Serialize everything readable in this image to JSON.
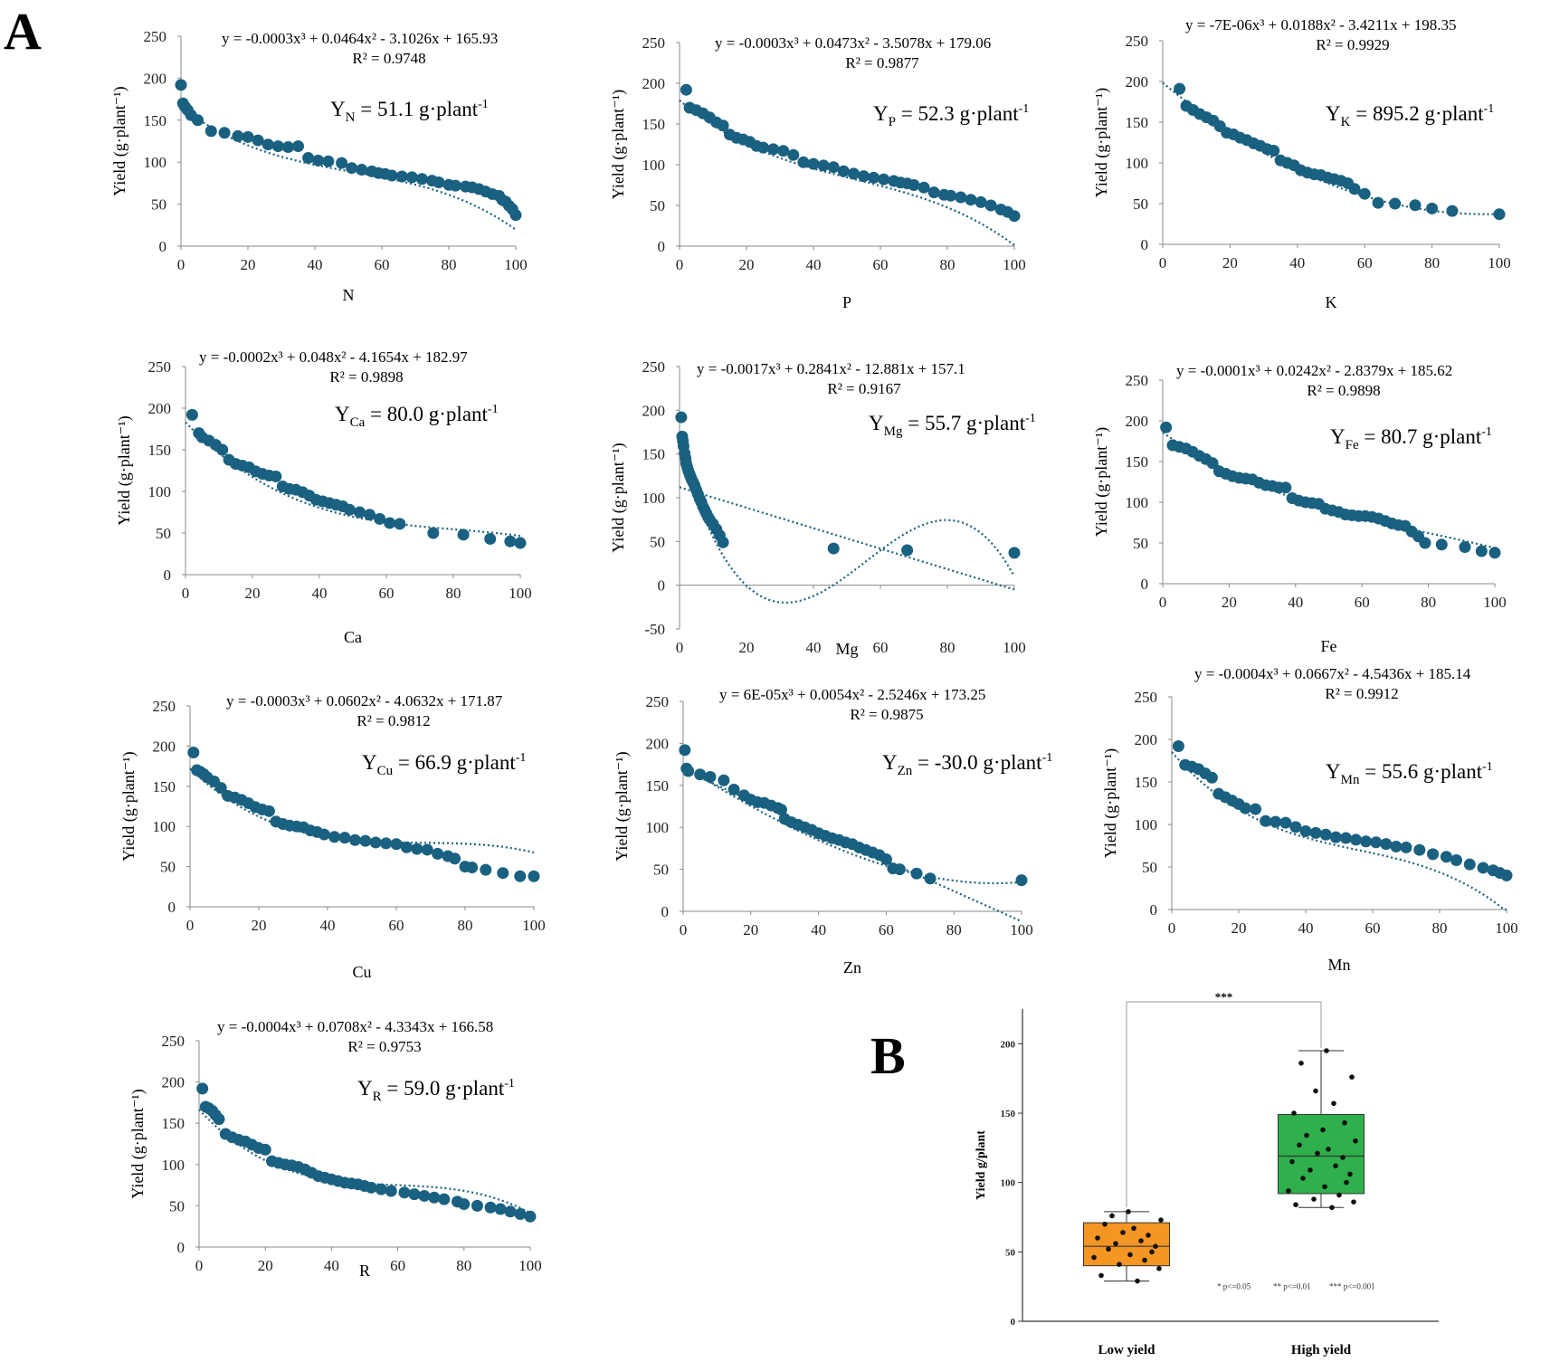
{
  "panel_labels": {
    "a": "A",
    "b": "B"
  },
  "style": {
    "point_color": "#1a6080",
    "low_box_color": "#f59524",
    "high_box_color": "#2fb04c"
  },
  "chart_data": [
    {
      "id": "N",
      "type": "scatter",
      "title": "",
      "xlabel": "N",
      "ylabel": "Yield (g·plant⁻¹)",
      "xlim": [
        0,
        100
      ],
      "ylim": [
        0,
        250
      ],
      "xticks": [
        0,
        20,
        40,
        60,
        80,
        100
      ],
      "yticks": [
        0,
        50,
        100,
        150,
        200,
        250
      ],
      "equation": "y = -0.0003x³ + 0.0464x² - 3.1026x + 165.93",
      "r2": "R² = 0.9748",
      "result": {
        "prefix": "Y",
        "sub": "N",
        "value": " = 51.1 g·plant",
        "sup": "-1"
      },
      "coef": [
        165.93,
        -3.1026,
        0.0464,
        -0.0003
      ],
      "x": [
        0,
        0.6,
        1.2,
        2,
        3,
        5,
        9,
        13,
        17,
        20,
        23,
        26,
        29,
        32,
        35,
        38,
        41,
        44,
        48,
        51,
        54,
        57,
        59,
        61,
        63,
        66,
        69,
        72,
        75,
        77,
        80,
        82,
        85,
        87,
        89,
        91,
        93,
        95,
        96,
        97,
        98,
        99,
        100
      ],
      "y": [
        192,
        170,
        166,
        162,
        156,
        150,
        137,
        135,
        131,
        130,
        126,
        121,
        119,
        118,
        119,
        105,
        102,
        101,
        99,
        93,
        91,
        89,
        87,
        86,
        84,
        83,
        82,
        80,
        78,
        76,
        73,
        72,
        71,
        70,
        68,
        65,
        62,
        60,
        55,
        53,
        48,
        44,
        37
      ]
    },
    {
      "id": "P",
      "type": "scatter",
      "title": "",
      "xlabel": "P",
      "ylabel": "Yield (g·plant⁻¹)",
      "xlim": [
        0,
        100
      ],
      "ylim": [
        0,
        250
      ],
      "xticks": [
        0,
        20,
        40,
        60,
        80,
        100
      ],
      "yticks": [
        0,
        50,
        100,
        150,
        200,
        250
      ],
      "equation": "y = -0.0003x³ + 0.0473x² - 3.5078x + 179.06",
      "r2": "R² = 0.9877",
      "result": {
        "prefix": "Y",
        "sub": "P",
        "value": " = 52.3 g·plant",
        "sup": "-1"
      },
      "coef": [
        179.06,
        -3.5078,
        0.0473,
        -0.0003
      ],
      "x": [
        2,
        3,
        5,
        7,
        9,
        11,
        13,
        15,
        17,
        19,
        21,
        23,
        25,
        28,
        31,
        34,
        37,
        40,
        43,
        46,
        49,
        52,
        55,
        58,
        61,
        64,
        66,
        68,
        70,
        73,
        76,
        79,
        81,
        84,
        87,
        90,
        93,
        96,
        98,
        100
      ],
      "y": [
        192,
        170,
        167,
        163,
        158,
        152,
        148,
        137,
        133,
        131,
        128,
        123,
        121,
        119,
        117,
        112,
        103,
        101,
        99,
        97,
        92,
        89,
        86,
        84,
        82,
        80,
        78,
        77,
        75,
        72,
        66,
        63,
        62,
        60,
        57,
        54,
        50,
        45,
        42,
        37
      ]
    },
    {
      "id": "K",
      "type": "scatter",
      "title": "",
      "xlabel": "K",
      "ylabel": "Yield (g·plant⁻¹)",
      "xlim": [
        0,
        100
      ],
      "ylim": [
        0,
        250
      ],
      "xticks": [
        0,
        20,
        40,
        60,
        80,
        100
      ],
      "yticks": [
        0,
        50,
        100,
        150,
        200,
        250
      ],
      "equation": "y = -7E-06x³ + 0.0188x² - 3.4211x + 198.35",
      "r2": "R² = 0.9929",
      "result": {
        "prefix": "Y",
        "sub": "K",
        "value": " = 895.2 g·plant",
        "sup": "-1"
      },
      "coef": [
        198.35,
        -3.4211,
        0.0188,
        -7e-06
      ],
      "x": [
        5,
        7,
        9,
        11,
        13,
        15,
        17,
        19,
        21,
        23,
        25,
        27,
        29,
        31,
        33,
        35,
        37,
        39,
        41,
        43,
        45,
        47,
        49,
        51,
        53,
        55,
        57,
        60,
        64,
        69,
        75,
        80,
        86,
        100
      ],
      "y": [
        191,
        170,
        165,
        160,
        156,
        152,
        145,
        137,
        135,
        131,
        128,
        124,
        121,
        117,
        115,
        103,
        100,
        97,
        91,
        88,
        86,
        85,
        82,
        80,
        78,
        75,
        68,
        62,
        51,
        50,
        48,
        44,
        41,
        37
      ]
    },
    {
      "id": "Ca",
      "type": "scatter",
      "title": "",
      "xlabel": "Ca",
      "ylabel": "Yield (g·plant⁻¹)",
      "xlim": [
        0,
        100
      ],
      "ylim": [
        0,
        250
      ],
      "xticks": [
        0,
        20,
        40,
        60,
        80,
        100
      ],
      "yticks": [
        0,
        50,
        100,
        150,
        200,
        250
      ],
      "equation": "y = -0.0002x³ + 0.048x² - 4.1654x + 182.97",
      "r2": "R² = 0.9898",
      "result": {
        "prefix": "Y",
        "sub": "Ca",
        "value": " = 80.0 g·plant",
        "sup": "-1"
      },
      "coef": [
        182.97,
        -4.1654,
        0.048,
        -0.0002
      ],
      "x": [
        2,
        4,
        5,
        7,
        9,
        11,
        13,
        15,
        17,
        19,
        21,
        23,
        25,
        27,
        29,
        31,
        33,
        35,
        37,
        39,
        41,
        43,
        45,
        47,
        49,
        52,
        55,
        58,
        61,
        64,
        74,
        83,
        91,
        97,
        100
      ],
      "y": [
        192,
        170,
        165,
        161,
        156,
        150,
        138,
        133,
        131,
        129,
        124,
        121,
        119,
        118,
        106,
        103,
        102,
        99,
        95,
        90,
        88,
        86,
        84,
        82,
        78,
        75,
        72,
        67,
        62,
        61,
        50,
        48,
        43,
        40,
        38
      ]
    },
    {
      "id": "Mg",
      "type": "scatter",
      "title": "",
      "xlabel": "Mg",
      "ylabel": "Yield (g·plant⁻¹)",
      "xlim": [
        0,
        100
      ],
      "ylim": [
        -50,
        250
      ],
      "xticks": [
        0,
        20,
        40,
        60,
        80,
        100
      ],
      "yticks": [
        -50,
        0,
        50,
        100,
        150,
        200,
        250
      ],
      "equation": "y = -0.0017x³ + 0.2841x² - 12.881x + 157.1",
      "r2": "R² = 0.9167",
      "result": {
        "prefix": "Y",
        "sub": "Mg",
        "value": " = 55.7 g·plant",
        "sup": "-1"
      },
      "coef": [
        157.1,
        -12.881,
        0.2841,
        -0.0017
      ],
      "linear": [
        112,
        -1.17
      ],
      "x": [
        0.5,
        0.8,
        1,
        1.2,
        1.5,
        1.8,
        2,
        2.3,
        2.6,
        3,
        3.3,
        3.6,
        4,
        4.5,
        5,
        5.5,
        6,
        6.5,
        7,
        7.5,
        8,
        8.5,
        9,
        10,
        11,
        12,
        13,
        46,
        68,
        100
      ],
      "y": [
        192,
        170,
        165,
        159,
        151,
        145,
        139,
        135,
        131,
        127,
        124,
        121,
        118,
        114,
        109,
        104,
        99,
        95,
        90,
        86,
        82,
        78,
        75,
        70,
        64,
        57,
        49,
        42,
        40,
        37
      ]
    },
    {
      "id": "Fe",
      "type": "scatter",
      "title": "",
      "xlabel": "Fe",
      "ylabel": "Yield (g·plant⁻¹)",
      "xlim": [
        0,
        100
      ],
      "ylim": [
        0,
        250
      ],
      "xticks": [
        0,
        20,
        40,
        60,
        80,
        100
      ],
      "yticks": [
        0,
        50,
        100,
        150,
        200,
        250
      ],
      "equation": "y = -0.0001x³ + 0.0242x² - 2.8379x + 185.62",
      "r2": "R² = 0.9898",
      "result": {
        "prefix": "Y",
        "sub": "Fe",
        "value": " = 80.7 g·plant",
        "sup": "-1"
      },
      "coef": [
        185.62,
        -2.8379,
        0.0242,
        -0.0001
      ],
      "x": [
        1,
        3,
        5,
        7,
        9,
        11,
        13,
        15,
        17,
        19,
        21,
        23,
        25,
        27,
        29,
        31,
        33,
        35,
        37,
        39,
        41,
        43,
        45,
        47,
        49,
        51,
        53,
        55,
        57,
        59,
        61,
        63,
        65,
        67,
        69,
        71,
        73,
        75,
        77,
        79,
        84,
        91,
        96,
        100
      ],
      "y": [
        192,
        170,
        168,
        166,
        162,
        157,
        153,
        148,
        138,
        135,
        132,
        130,
        129,
        128,
        124,
        121,
        120,
        118,
        118,
        105,
        102,
        100,
        99,
        98,
        92,
        90,
        88,
        85,
        84,
        83,
        83,
        82,
        80,
        77,
        74,
        72,
        71,
        64,
        58,
        50,
        48,
        45,
        40,
        38
      ]
    },
    {
      "id": "Cu",
      "type": "scatter",
      "title": "",
      "xlabel": "Cu",
      "ylabel": "Yield (g·plant⁻¹)",
      "xlim": [
        0,
        100
      ],
      "ylim": [
        0,
        250
      ],
      "xticks": [
        0,
        20,
        40,
        60,
        80,
        100
      ],
      "yticks": [
        0,
        50,
        100,
        150,
        200,
        250
      ],
      "equation": "y = -0.0003x³ + 0.0602x² - 4.0632x + 171.87",
      "r2": "R² = 0.9812",
      "result": {
        "prefix": "Y",
        "sub": "Cu",
        "value": " = 66.9 g·plant",
        "sup": "-1"
      },
      "coef": [
        171.87,
        -4.0632,
        0.0602,
        -0.0003
      ],
      "x": [
        1,
        2,
        3,
        4,
        5,
        7,
        9,
        11,
        13,
        15,
        17,
        19,
        21,
        23,
        25,
        27,
        29,
        31,
        33,
        35,
        37,
        39,
        42,
        45,
        48,
        51,
        54,
        57,
        60,
        63,
        66,
        69,
        72,
        75,
        77,
        80,
        82,
        86,
        91,
        96,
        100
      ],
      "y": [
        192,
        170,
        168,
        165,
        161,
        156,
        148,
        138,
        136,
        133,
        129,
        124,
        121,
        119,
        106,
        103,
        101,
        100,
        99,
        95,
        93,
        90,
        87,
        86,
        83,
        82,
        80,
        79,
        78,
        74,
        72,
        71,
        66,
        63,
        60,
        50,
        49,
        46,
        42,
        38,
        38
      ]
    },
    {
      "id": "Zn",
      "type": "scatter",
      "title": "",
      "xlabel": "Zn",
      "ylabel": "Yield (g·plant⁻¹)",
      "xlim": [
        0,
        100
      ],
      "ylim": [
        0,
        250
      ],
      "xticks": [
        0,
        20,
        40,
        60,
        80,
        100
      ],
      "yticks": [
        0,
        50,
        100,
        150,
        200,
        250
      ],
      "equation": "y = 6E-05x³ + 0.0054x² - 2.5246x + 173.25",
      "r2": "R² = 0.9875",
      "result": {
        "prefix": "Y",
        "sub": "Zn",
        "value": " = -30.0 g·plant",
        "sup": "-1"
      },
      "coef": [
        173.25,
        -2.5246,
        0.0054,
        6e-05
      ],
      "linear": [
        168,
        -1.8
      ],
      "x": [
        0.5,
        1,
        1.5,
        5,
        8,
        12,
        15,
        18,
        20,
        22,
        24,
        26,
        28,
        29,
        30,
        32,
        34,
        36,
        38,
        40,
        42,
        44,
        46,
        48,
        50,
        52,
        54,
        56,
        58,
        60,
        62,
        64,
        69,
        73,
        100
      ],
      "y": [
        192,
        170,
        167,
        163,
        160,
        156,
        145,
        138,
        133,
        130,
        129,
        126,
        123,
        121,
        110,
        106,
        103,
        100,
        97,
        93,
        90,
        87,
        85,
        82,
        80,
        76,
        73,
        70,
        67,
        62,
        51,
        50,
        45,
        39,
        37
      ]
    },
    {
      "id": "Mn",
      "type": "scatter",
      "title": "",
      "xlabel": "Mn",
      "ylabel": "Yield (g·plant⁻¹)",
      "xlim": [
        0,
        100
      ],
      "ylim": [
        0,
        250
      ],
      "xticks": [
        0,
        20,
        40,
        60,
        80,
        100
      ],
      "yticks": [
        0,
        50,
        100,
        150,
        200,
        250
      ],
      "equation": "y = -0.0004x³ + 0.0667x² - 4.5436x + 185.14",
      "r2": "R² = 0.9912",
      "result": {
        "prefix": "Y",
        "sub": "Mn",
        "value": " = 55.6 g·plant",
        "sup": "-1"
      },
      "coef": [
        185.14,
        -4.5436,
        0.0667,
        -0.0004
      ],
      "x": [
        2,
        4,
        6,
        8,
        10,
        12,
        14,
        16,
        18,
        20,
        22,
        25,
        28,
        31,
        34,
        37,
        40,
        43,
        46,
        49,
        52,
        55,
        58,
        61,
        64,
        67,
        70,
        74,
        78,
        82,
        85,
        89,
        93,
        96,
        98,
        100
      ],
      "y": [
        192,
        170,
        168,
        165,
        160,
        155,
        136,
        132,
        128,
        124,
        119,
        118,
        104,
        103,
        102,
        97,
        92,
        90,
        88,
        85,
        84,
        82,
        80,
        79,
        77,
        74,
        73,
        70,
        65,
        62,
        58,
        53,
        49,
        46,
        43,
        40
      ]
    },
    {
      "id": "R",
      "type": "scatter",
      "title": "",
      "xlabel": "R",
      "ylabel": "Yield (g·plant⁻¹)",
      "xlim": [
        0,
        100
      ],
      "ylim": [
        0,
        250
      ],
      "xticks": [
        0,
        20,
        40,
        60,
        80,
        100
      ],
      "yticks": [
        0,
        50,
        100,
        150,
        200,
        250
      ],
      "equation": "y = -0.0004x³ + 0.0708x² - 4.3343x + 166.58",
      "r2": "R² = 0.9753",
      "result": {
        "prefix": "Y",
        "sub": "R",
        "value": " = 59.0 g·plant",
        "sup": "-1"
      },
      "coef": [
        166.58,
        -4.3343,
        0.0708,
        -0.0004
      ],
      "x": [
        1,
        2,
        3,
        4,
        5,
        6,
        8,
        10,
        12,
        14,
        16,
        18,
        20,
        22,
        24,
        26,
        28,
        30,
        32,
        34,
        36,
        38,
        40,
        42,
        44,
        46,
        48,
        50,
        52,
        55,
        58,
        62,
        65,
        68,
        71,
        74,
        78,
        80,
        84,
        88,
        91,
        94,
        97,
        100
      ],
      "y": [
        192,
        170,
        168,
        165,
        160,
        155,
        137,
        133,
        130,
        128,
        124,
        120,
        118,
        104,
        102,
        100,
        99,
        97,
        94,
        90,
        86,
        84,
        82,
        80,
        78,
        77,
        76,
        74,
        72,
        70,
        68,
        66,
        64,
        62,
        60,
        58,
        55,
        52,
        50,
        48,
        46,
        43,
        40,
        37
      ]
    },
    {
      "id": "B",
      "type": "box",
      "title": "",
      "xlabel": "",
      "ylabel": "Yield g/plant",
      "ylim": [
        0,
        225
      ],
      "yticks": [
        0,
        50,
        100,
        150,
        200
      ],
      "categories": [
        "Low yield",
        "High yield"
      ],
      "boxes": [
        {
          "name": "Low yield",
          "min": 29,
          "q1": 40,
          "median": 54,
          "q3": 71,
          "max": 79,
          "points": [
            29,
            33,
            38,
            41,
            44,
            46,
            48,
            50,
            52,
            54,
            56,
            58,
            60,
            62,
            64,
            67,
            70,
            73,
            76,
            79
          ]
        },
        {
          "name": "High yield",
          "min": 82,
          "q1": 92,
          "median": 119,
          "q3": 149,
          "max": 195,
          "points": [
            82,
            84,
            86,
            88,
            91,
            94,
            97,
            100,
            103,
            106,
            109,
            112,
            115,
            118,
            121,
            124,
            127,
            130,
            134,
            138,
            143,
            150,
            157,
            166,
            176,
            186,
            195
          ]
        }
      ],
      "significance": "***",
      "legend_notes": [
        "* p<=0.05",
        "** p<=0.01",
        "*** p<=0.001"
      ]
    }
  ]
}
